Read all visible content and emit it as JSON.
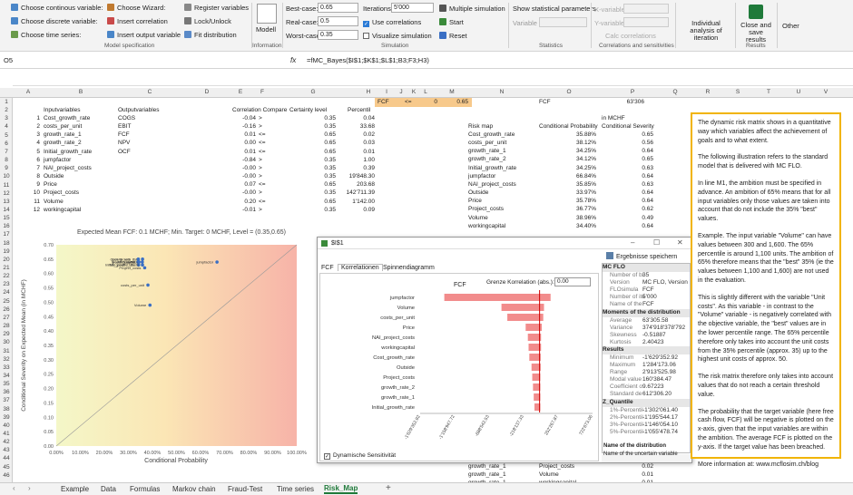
{
  "ribbon": {
    "model_spec": {
      "items": [
        "Choose continous variable:",
        "Choose discrete variable:",
        "Choose time series:",
        "Choose Wizard:",
        "Insert correlation",
        "Insert output variable",
        "Register variables",
        "Lock/Unlock",
        "Fit distribution"
      ],
      "label": "Model specification"
    },
    "information": {
      "model": "Modell",
      "label": "Information"
    },
    "simulation": {
      "best": "Best-case:",
      "best_val": "0.65",
      "real": "Real-case:",
      "real_val": "0.5",
      "worst": "Worst-case:",
      "worst_val": "0.35",
      "iter": "Iterations:",
      "iter_val": "5'000",
      "use_corr": "Use correlations",
      "visualize": "Visualize simulation",
      "multi": "Multiple simulation",
      "start": "Start",
      "reset": "Reset",
      "label": "Simulation"
    },
    "statistics": {
      "show": "Show statistical parameters",
      "variable": "Variable",
      "label": "Statistics"
    },
    "corr": {
      "xvar": "X-variable",
      "yvar": "Y-variable",
      "calc": "Calc correlations",
      "label": "Correlations and sensitivities"
    },
    "individual": "Individual analysis of iteration",
    "close": "Close and save results",
    "results_label": "Results",
    "other": "Other"
  },
  "formula_bar": {
    "name_box": "O5",
    "formula": "=fMC_Bayes($I$1;$K$1;$L$1;B3;F3;H3)"
  },
  "columns": [
    "A",
    "B",
    "C",
    "D",
    "E",
    "F",
    "G",
    "H",
    "I",
    "J",
    "K",
    "L",
    "M",
    "N",
    "O",
    "P",
    "Q",
    "R",
    "S",
    "T",
    "U",
    "V"
  ],
  "row1": {
    "fcf": "FCF",
    "op": "<=",
    "zero": "0",
    "val": "0.65",
    "fcf2": "FCF",
    "num": "63'306"
  },
  "headers": {
    "input": "Inputvariables",
    "output": "Outputvariables",
    "corr": "Correlation Compare",
    "cert": "Certainty level",
    "pct": "Percentil",
    "inmchf": "in MCHF",
    "riskmap": "Risk map",
    "condprob": "Conditional Probability",
    "condsev": "Conditional Severity"
  },
  "table": [
    {
      "n": "1",
      "in": "Cost_growth_rate",
      "out": "COGS",
      "c": "-0.04",
      "cmp": ">",
      "cl": "0.35",
      "p": "0.04"
    },
    {
      "n": "2",
      "in": "costs_per_unit",
      "out": "EBIT",
      "c": "-0.16",
      "cmp": ">",
      "cl": "0.35",
      "p": "33.68"
    },
    {
      "n": "3",
      "in": "growth_rate_1",
      "out": "FCF",
      "c": "0.01",
      "cmp": "<=",
      "cl": "0.65",
      "p": "0.02"
    },
    {
      "n": "4",
      "in": "growth_rate_2",
      "out": "NPV",
      "c": "0.00",
      "cmp": "<=",
      "cl": "0.65",
      "p": "0.03"
    },
    {
      "n": "5",
      "in": "Initial_growth_rate",
      "out": "OCF",
      "c": "0.01",
      "cmp": "<=",
      "cl": "0.65",
      "p": "0.01"
    },
    {
      "n": "6",
      "in": "jumpfactor",
      "out": "",
      "c": "-0.84",
      "cmp": ">",
      "cl": "0.35",
      "p": "1.00"
    },
    {
      "n": "7",
      "in": "NAI_project_costs",
      "out": "",
      "c": "-0.00",
      "cmp": ">",
      "cl": "0.35",
      "p": "0.39"
    },
    {
      "n": "8",
      "in": "Outside",
      "out": "",
      "c": "-0.00",
      "cmp": ">",
      "cl": "0.35",
      "p": "19'848.30"
    },
    {
      "n": "9",
      "in": "Price",
      "out": "",
      "c": "0.07",
      "cmp": "<=",
      "cl": "0.65",
      "p": "203.68"
    },
    {
      "n": "10",
      "in": "Project_costs",
      "out": "",
      "c": "-0.00",
      "cmp": ">",
      "cl": "0.35",
      "p": "142'711.39"
    },
    {
      "n": "11",
      "in": "Volume",
      "out": "",
      "c": "0.20",
      "cmp": "<=",
      "cl": "0.65",
      "p": "1'142.00"
    },
    {
      "n": "12",
      "in": "workingcapital",
      "out": "",
      "c": "-0.01",
      "cmp": ">",
      "cl": "0.35",
      "p": "0.09"
    }
  ],
  "riskmap": [
    {
      "name": "Cost_growth_rate",
      "p": "35.88%",
      "s": "0.65"
    },
    {
      "name": "costs_per_unit",
      "p": "38.12%",
      "s": "0.56"
    },
    {
      "name": "growth_rate_1",
      "p": "34.25%",
      "s": "0.64"
    },
    {
      "name": "growth_rate_2",
      "p": "34.12%",
      "s": "0.65"
    },
    {
      "name": "Initial_growth_rate",
      "p": "34.25%",
      "s": "0.63"
    },
    {
      "name": "jumpfactor",
      "p": "66.84%",
      "s": "0.64"
    },
    {
      "name": "NAI_project_costs",
      "p": "35.85%",
      "s": "0.63"
    },
    {
      "name": "Outside",
      "p": "33.97%",
      "s": "0.64"
    },
    {
      "name": "Price",
      "p": "35.78%",
      "s": "0.64"
    },
    {
      "name": "Project_costs",
      "p": "36.77%",
      "s": "0.62"
    },
    {
      "name": "Volume",
      "p": "38.96%",
      "s": "0.49"
    },
    {
      "name": "workingcapital",
      "p": "34.40%",
      "s": "0.64"
    }
  ],
  "bottom_rows": [
    {
      "a": "growth_rate_1",
      "b": "Project_costs",
      "v": "0.02"
    },
    {
      "a": "growth_rate_1",
      "b": "Volume",
      "v": "0.01"
    },
    {
      "a": "growth_rate_1",
      "b": "workingcapital",
      "v": "0.01"
    }
  ],
  "chart_data": {
    "type": "scatter",
    "title": "Expected Mean FCF: 0.1 MCHF; Min. Target: 0 MCHF, Level = (0.35,0.65)",
    "xlabel": "Conditional Probability",
    "ylabel": "Conditional Severity on Expected Mean (in MCHF)",
    "xlim": [
      0,
      1
    ],
    "ylim": [
      0,
      0.7
    ],
    "xticks": [
      "0.00%",
      "10.00%",
      "20.00%",
      "30.00%",
      "40.00%",
      "50.00%",
      "60.00%",
      "70.00%",
      "80.00%",
      "90.00%",
      "100.00%"
    ],
    "yticks": [
      "0.00",
      "0.05",
      "0.10",
      "0.15",
      "0.20",
      "0.25",
      "0.30",
      "0.35",
      "0.40",
      "0.45",
      "0.50",
      "0.55",
      "0.60",
      "0.65",
      "0.70"
    ],
    "points": [
      {
        "label": "jumpfactor",
        "x": 0.6684,
        "y": 0.64
      },
      {
        "label": "costs_per_unit",
        "x": 0.3812,
        "y": 0.56
      },
      {
        "label": "Volume",
        "x": 0.3896,
        "y": 0.49
      },
      {
        "label": "Cost_growth_rate",
        "x": 0.3588,
        "y": 0.65
      },
      {
        "label": "growth_rate_1",
        "x": 0.3425,
        "y": 0.64
      },
      {
        "label": "growth_rate_2",
        "x": 0.3412,
        "y": 0.65
      },
      {
        "label": "Initial_growth_rate",
        "x": 0.3425,
        "y": 0.63
      },
      {
        "label": "NAI_project_costs",
        "x": 0.3585,
        "y": 0.63
      },
      {
        "label": "Outside",
        "x": 0.3397,
        "y": 0.64
      },
      {
        "label": "Price",
        "x": 0.3578,
        "y": 0.64
      },
      {
        "label": "Project_costs",
        "x": 0.3677,
        "y": 0.62
      },
      {
        "label": "workingcapital",
        "x": 0.344,
        "y": 0.64
      }
    ],
    "colors": {
      "point": "#3a6fc4",
      "bg_left": "#f4f7c8",
      "bg_right": "#f7b3a8"
    }
  },
  "dialog": {
    "title": "$I$1",
    "save": "Ergebnisse speichern",
    "tabs": [
      "FCF",
      "Korrelationen",
      "Spinnendiagramm"
    ],
    "active_tab": "Korrelationen",
    "limit_label": "Grenze Korrelation (abs.):",
    "limit_val": "0.00",
    "chart_title": "FCF",
    "dyn_label": "Dynamische Sensitivität",
    "tornado": {
      "type": "bar",
      "categories": [
        "jumpfactor",
        "Volume",
        "costs_per_unit",
        "Price",
        "NAI_project_costs",
        "workingcapital",
        "Cost_growth_rate",
        "Outside",
        "Project_costs",
        "growth_rate_2",
        "growth_rate_1",
        "Initial_growth_rate"
      ],
      "low": [
        -1300000,
        -520000,
        -440000,
        -190000,
        -160000,
        -150000,
        -140000,
        -110000,
        -100000,
        -90000,
        -80000,
        -70000
      ],
      "high": [
        150000,
        60000,
        50000,
        30000,
        20000,
        20000,
        15000,
        15000,
        10000,
        10000,
        10000,
        10000
      ],
      "xticks": [
        "-1'629'352.92",
        "-1'158'947.72",
        "-688'542.53",
        "-218'137.33",
        "252'267.87",
        "722'673.06"
      ],
      "xlim": [
        -1629352.92,
        722673.06
      ]
    },
    "panel": {
      "sections": [
        {
          "head": "MC FLO",
          "rows": [
            [
              "Number of bi",
              "35"
            ],
            [
              "Version",
              "MC FLO, Version"
            ],
            [
              "FLOsimula",
              "FCF"
            ],
            [
              "Number of ite",
              "5'000"
            ],
            [
              "Name of the",
              "FCF"
            ]
          ]
        },
        {
          "head": "Moments of the distribution",
          "rows": [
            [
              "Average",
              "63'305.58"
            ],
            [
              "Variance",
              "374'918'378'792"
            ],
            [
              "Skewness",
              "-0.51887"
            ],
            [
              "Kurtosis",
              "2.40423"
            ]
          ]
        },
        {
          "head": "Results",
          "rows": [
            [
              "Minimum",
              "-1'629'352.92"
            ],
            [
              "Maximum",
              "1'284'173.06"
            ],
            [
              "Range",
              "2'913'525.98"
            ],
            [
              "Modal value",
              "160'384.47"
            ],
            [
              "Coefficient o",
              "9.67223"
            ],
            [
              "Standard de",
              "612'306.20"
            ]
          ]
        },
        {
          "head": "Z_Quantile",
          "rows": [
            [
              "1%-Percentil",
              "-1'302'061.40"
            ],
            [
              "2%-Percentil",
              "-1'195'544.17"
            ],
            [
              "3%-Percentil",
              "-1'146'054.10"
            ],
            [
              "5%-Percentil",
              "-1'055'478.74"
            ]
          ]
        }
      ],
      "desc_title": "Name of the distribution",
      "desc_text": "Name of the uncertain variable"
    }
  },
  "textbox": [
    "The dynamic risk matrix shows in a quantitative way which variables affect the achievement of goals and to what extent.",
    "The following illustration refers to the standard model that is delivered with MC FLO.",
    "In line M1, the ambition must be specified in advance. An ambition of 65% means that for all input variables only those values are taken into account that do not include the 35% \"best\" values.",
    "Example. The input variable \"Volume\" can have values between 300 and 1,600. The 65% percentile is around 1,100 units. The ambition of 65% therefore means that the \"best\" 35% (ie the values between 1,100 and 1,600) are not used in the evaluation.",
    "This is slightly different with the variable \"Unit costs\". As this variable - in contrast to the \"Volume\" variable - is negatively correlated with the objective variable, the \"best\" values are in the lower percentile range. The 65% percentile therefore only takes into account the unit costs from the 35% percentile (approx. 35) up to the highest unit costs of approx. 50.",
    "The risk matrix therefore only takes into account values that do not reach a certain threshold value.",
    "The probability that the target variable (here free cash flow, FCF) will be negative is plotted on the x-axis, given that the input variables are within the ambition. The average FCF is plotted on the y-axis. If the target value has been breached.",
    "More information at: www.mcflosim.ch/blog"
  ],
  "sheet_tabs": [
    "Example",
    "Data",
    "Formulas",
    "Markov chain",
    "Fraud-Test",
    "Time series",
    "Risk_Map"
  ],
  "active_sheet": "Risk_Map"
}
